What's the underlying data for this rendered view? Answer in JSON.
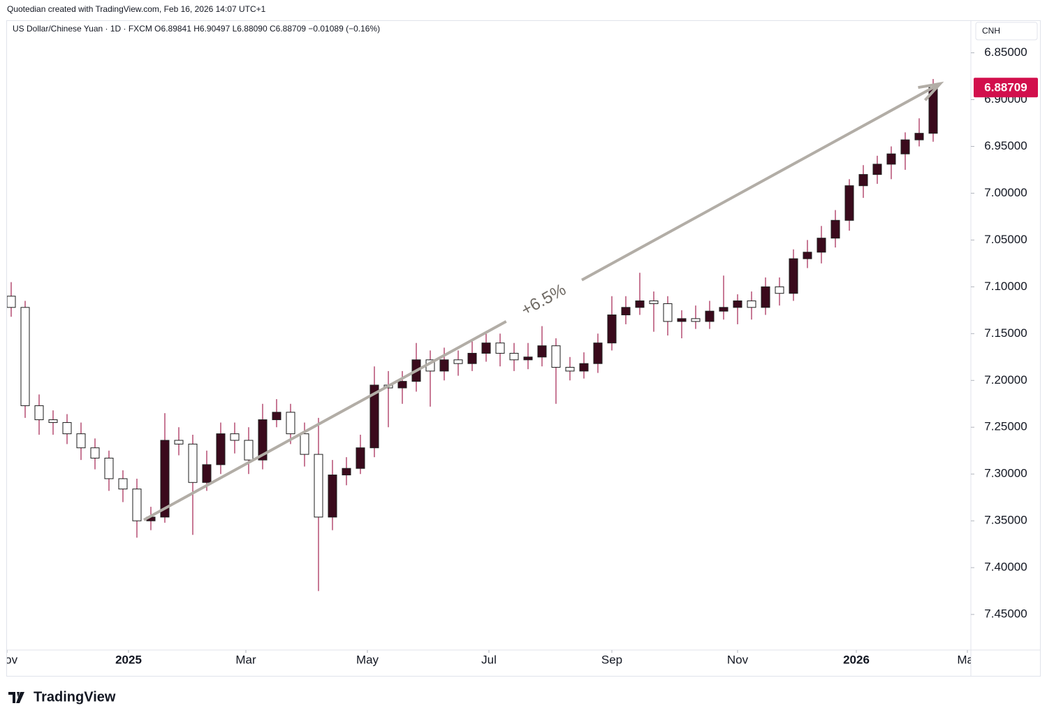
{
  "header": "Quotedian created with TradingView.com, Feb 16, 2026 14:07 UTC+1",
  "footer": "TradingView",
  "chart_data": {
    "type": "candlestick",
    "symbol_line": "US Dollar/Chinese Yuan · 1D · FXCM   O6.89841  H6.90497  L6.88090  C6.88709  −0.01089 (−0.16%)",
    "currency": "CNH",
    "up_color": "#ffffff",
    "down_color": "#3a0a1c",
    "wick_color": "#a3214f",
    "badge_color": "#d20f4c",
    "ylim": [
      7.488,
      6.816
    ],
    "yticks": [
      {
        "value": 6.85,
        "label": "6.85000"
      },
      {
        "value": 6.9,
        "label": "6.90000"
      },
      {
        "value": 6.95,
        "label": "6.95000"
      },
      {
        "value": 7.0,
        "label": "7.00000"
      },
      {
        "value": 7.05,
        "label": "7.05000"
      },
      {
        "value": 7.1,
        "label": "7.10000"
      },
      {
        "value": 7.15,
        "label": "7.15000"
      },
      {
        "value": 7.2,
        "label": "7.20000"
      },
      {
        "value": 7.25,
        "label": "7.25000"
      },
      {
        "value": 7.3,
        "label": "7.30000"
      },
      {
        "value": 7.35,
        "label": "7.35000"
      },
      {
        "value": 7.4,
        "label": "7.40000"
      },
      {
        "value": 7.45,
        "label": "7.45000"
      }
    ],
    "xlim": [
      -0.3,
      68.7
    ],
    "xticks": [
      {
        "value": -0.3,
        "label": "Nov"
      },
      {
        "value": 8.4,
        "label": "2025"
      },
      {
        "value": 16.8,
        "label": "Mar"
      },
      {
        "value": 25.5,
        "label": "May"
      },
      {
        "value": 34.2,
        "label": "Jul"
      },
      {
        "value": 43,
        "label": "Sep"
      },
      {
        "value": 52,
        "label": "Nov"
      },
      {
        "value": 60.5,
        "label": "2026"
      },
      {
        "value": 68.45,
        "label": "Mar"
      }
    ],
    "candles": [
      [
        7.11,
        7.132,
        7.095,
        7.122
      ],
      [
        7.122,
        7.24,
        7.115,
        7.227
      ],
      [
        7.227,
        7.258,
        7.215,
        7.242
      ],
      [
        7.242,
        7.258,
        7.232,
        7.245
      ],
      [
        7.245,
        7.268,
        7.236,
        7.257
      ],
      [
        7.257,
        7.285,
        7.245,
        7.272
      ],
      [
        7.272,
        7.295,
        7.262,
        7.283
      ],
      [
        7.283,
        7.318,
        7.275,
        7.305
      ],
      [
        7.305,
        7.33,
        7.296,
        7.316
      ],
      [
        7.316,
        7.368,
        7.305,
        7.35
      ],
      [
        7.35,
        7.36,
        7.335,
        7.346
      ],
      [
        7.346,
        7.352,
        7.235,
        7.264
      ],
      [
        7.264,
        7.28,
        7.25,
        7.268
      ],
      [
        7.268,
        7.365,
        7.258,
        7.309
      ],
      [
        7.309,
        7.318,
        7.275,
        7.29
      ],
      [
        7.29,
        7.3,
        7.245,
        7.257
      ],
      [
        7.257,
        7.278,
        7.245,
        7.264
      ],
      [
        7.264,
        7.3,
        7.25,
        7.285
      ],
      [
        7.285,
        7.295,
        7.225,
        7.242
      ],
      [
        7.242,
        7.25,
        7.22,
        7.234
      ],
      [
        7.234,
        7.268,
        7.225,
        7.257
      ],
      [
        7.257,
        7.292,
        7.245,
        7.279
      ],
      [
        7.279,
        7.425,
        7.24,
        7.346
      ],
      [
        7.346,
        7.36,
        7.285,
        7.301
      ],
      [
        7.301,
        7.312,
        7.282,
        7.294
      ],
      [
        7.294,
        7.3,
        7.258,
        7.272
      ],
      [
        7.272,
        7.282,
        7.185,
        7.205
      ],
      [
        7.205,
        7.25,
        7.19,
        7.208
      ],
      [
        7.208,
        7.225,
        7.19,
        7.201
      ],
      [
        7.201,
        7.212,
        7.16,
        7.178
      ],
      [
        7.178,
        7.228,
        7.168,
        7.19
      ],
      [
        7.19,
        7.2,
        7.165,
        7.178
      ],
      [
        7.178,
        7.195,
        7.168,
        7.182
      ],
      [
        7.182,
        7.19,
        7.158,
        7.171
      ],
      [
        7.171,
        7.18,
        7.148,
        7.16
      ],
      [
        7.16,
        7.185,
        7.15,
        7.171
      ],
      [
        7.171,
        7.19,
        7.16,
        7.178
      ],
      [
        7.178,
        7.188,
        7.16,
        7.175
      ],
      [
        7.175,
        7.185,
        7.142,
        7.163
      ],
      [
        7.163,
        7.225,
        7.155,
        7.186
      ],
      [
        7.186,
        7.2,
        7.175,
        7.19
      ],
      [
        7.19,
        7.198,
        7.17,
        7.182
      ],
      [
        7.182,
        7.192,
        7.15,
        7.16
      ],
      [
        7.16,
        7.168,
        7.11,
        7.13
      ],
      [
        7.13,
        7.14,
        7.11,
        7.122
      ],
      [
        7.122,
        7.13,
        7.085,
        7.115
      ],
      [
        7.115,
        7.148,
        7.105,
        7.118
      ],
      [
        7.118,
        7.152,
        7.11,
        7.137
      ],
      [
        7.137,
        7.155,
        7.125,
        7.134
      ],
      [
        7.134,
        7.145,
        7.12,
        7.137
      ],
      [
        7.137,
        7.145,
        7.115,
        7.126
      ],
      [
        7.126,
        7.135,
        7.088,
        7.122
      ],
      [
        7.122,
        7.14,
        7.108,
        7.115
      ],
      [
        7.115,
        7.135,
        7.105,
        7.122
      ],
      [
        7.122,
        7.13,
        7.09,
        7.1
      ],
      [
        7.1,
        7.12,
        7.09,
        7.107
      ],
      [
        7.107,
        7.115,
        7.06,
        7.07
      ],
      [
        7.07,
        7.08,
        7.05,
        7.063
      ],
      [
        7.063,
        7.075,
        7.035,
        7.048
      ],
      [
        7.048,
        7.058,
        7.018,
        7.029
      ],
      [
        7.029,
        7.04,
        6.985,
        6.992
      ],
      [
        6.992,
        7.005,
        6.97,
        6.98
      ],
      [
        6.98,
        6.99,
        6.96,
        6.969
      ],
      [
        6.969,
        6.985,
        6.95,
        6.958
      ],
      [
        6.958,
        6.975,
        6.935,
        6.943
      ],
      [
        6.943,
        6.95,
        6.92,
        6.936
      ],
      [
        6.936,
        6.945,
        6.878,
        6.88709
      ]
    ],
    "annotation": {
      "type": "trend",
      "start": [
        9.5,
        7.349
      ],
      "end": [
        66.5,
        6.883
      ],
      "label": "+6.5%",
      "color": "#b2ada6"
    }
  }
}
